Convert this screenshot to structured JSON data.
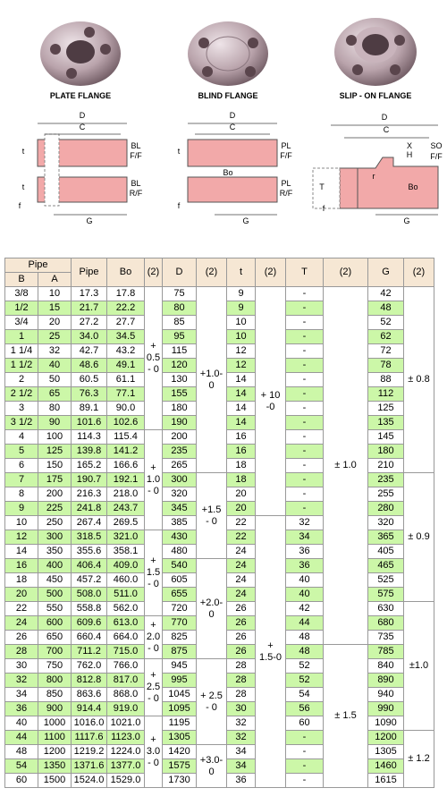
{
  "flanges": [
    "PLATE FLANGE",
    "BLIND FLANGE",
    "SLIP - ON FLANGE"
  ],
  "diagrams": [
    {
      "labels": [
        "D",
        "C",
        "BL",
        "F/F",
        "BL",
        "R/F",
        "t",
        "t",
        "f",
        "G"
      ]
    },
    {
      "labels": [
        "D",
        "C",
        "PL",
        "F/F",
        "PL",
        "R/F",
        "t",
        "Bo",
        "f",
        "G"
      ]
    },
    {
      "labels": [
        "D",
        "C",
        "X",
        "H",
        "SO",
        "F/F",
        "T",
        "r",
        "Bo",
        "f",
        "G"
      ]
    }
  ],
  "table": {
    "header": [
      "Pipe",
      "Pipe",
      "Bo",
      "(2)",
      "D",
      "(2)",
      "t",
      "(2)",
      "T",
      "(2)",
      "G",
      "(2)"
    ],
    "subheader": [
      "B",
      "A"
    ],
    "rows": [
      [
        "3/8",
        "10",
        "17.3",
        "17.8",
        "75",
        "9",
        "-",
        "42"
      ],
      [
        "1/2",
        "15",
        "21.7",
        "22.2",
        "80",
        "9",
        "-",
        "48"
      ],
      [
        "3/4",
        "20",
        "27.2",
        "27.7",
        "85",
        "10",
        "-",
        "52"
      ],
      [
        "1",
        "25",
        "34.0",
        "34.5",
        "95",
        "10",
        "-",
        "62"
      ],
      [
        "1 1/4",
        "32",
        "42.7",
        "43.2",
        "115",
        "12",
        "-",
        "72"
      ],
      [
        "1 1/2",
        "40",
        "48.6",
        "49.1",
        "120",
        "12",
        "-",
        "78"
      ],
      [
        "2",
        "50",
        "60.5",
        "61.1",
        "130",
        "14",
        "-",
        "88"
      ],
      [
        "2 1/2",
        "65",
        "76.3",
        "77.1",
        "155",
        "14",
        "-",
        "112"
      ],
      [
        "3",
        "80",
        "89.1",
        "90.0",
        "180",
        "14",
        "-",
        "125"
      ],
      [
        "3 1/2",
        "90",
        "101.6",
        "102.6",
        "190",
        "14",
        "-",
        "135"
      ],
      [
        "4",
        "100",
        "114.3",
        "115.4",
        "200",
        "16",
        "-",
        "145"
      ],
      [
        "5",
        "125",
        "139.8",
        "141.2",
        "235",
        "16",
        "-",
        "180"
      ],
      [
        "6",
        "150",
        "165.2",
        "166.6",
        "265",
        "18",
        "-",
        "210"
      ],
      [
        "7",
        "175",
        "190.7",
        "192.1",
        "300",
        "18",
        "-",
        "235"
      ],
      [
        "8",
        "200",
        "216.3",
        "218.0",
        "320",
        "20",
        "-",
        "255"
      ],
      [
        "9",
        "225",
        "241.8",
        "243.7",
        "345",
        "20",
        "-",
        "280"
      ],
      [
        "10",
        "250",
        "267.4",
        "269.5",
        "385",
        "22",
        "32",
        "320"
      ],
      [
        "12",
        "300",
        "318.5",
        "321.0",
        "430",
        "22",
        "34",
        "365"
      ],
      [
        "14",
        "350",
        "355.6",
        "358.1",
        "480",
        "24",
        "36",
        "405"
      ],
      [
        "16",
        "400",
        "406.4",
        "409.0",
        "540",
        "24",
        "36",
        "465"
      ],
      [
        "18",
        "450",
        "457.2",
        "460.0",
        "605",
        "24",
        "40",
        "525"
      ],
      [
        "20",
        "500",
        "508.0",
        "511.0",
        "655",
        "24",
        "40",
        "575"
      ],
      [
        "22",
        "550",
        "558.8",
        "562.0",
        "720",
        "26",
        "42",
        "630"
      ],
      [
        "24",
        "600",
        "609.6",
        "613.0",
        "770",
        "26",
        "44",
        "680"
      ],
      [
        "26",
        "650",
        "660.4",
        "664.0",
        "825",
        "26",
        "48",
        "735"
      ],
      [
        "28",
        "700",
        "711.2",
        "715.0",
        "875",
        "26",
        "48",
        "785"
      ],
      [
        "30",
        "750",
        "762.0",
        "766.0",
        "945",
        "28",
        "52",
        "840"
      ],
      [
        "32",
        "800",
        "812.8",
        "817.0",
        "995",
        "28",
        "52",
        "890"
      ],
      [
        "34",
        "850",
        "863.6",
        "868.0",
        "1045",
        "28",
        "54",
        "940"
      ],
      [
        "36",
        "900",
        "914.4",
        "919.0",
        "1095",
        "30",
        "56",
        "990"
      ],
      [
        "40",
        "1000",
        "1016.0",
        "1021.0",
        "1195",
        "32",
        "60",
        "1090"
      ],
      [
        "44",
        "1100",
        "1117.6",
        "1123.0",
        "1305",
        "32",
        "-",
        "1200"
      ],
      [
        "48",
        "1200",
        "1219.2",
        "1224.0",
        "1420",
        "34",
        "-",
        "1305"
      ],
      [
        "54",
        "1350",
        "1371.6",
        "1377.0",
        "1575",
        "34",
        "-",
        "1460"
      ],
      [
        "60",
        "1500",
        "1524.0",
        "1529.0",
        "1730",
        "36",
        "-",
        "1615"
      ]
    ],
    "tolerances": [
      [
        "+\n0.5\n- 0",
        "+\n1.0\n- 0",
        "+\n1.5\n- 0",
        "+\n2.0\n- 0",
        "+\n2.5\n- 0",
        "+\n3.0\n- 0"
      ],
      [
        "+1.0-\n0",
        "+1.5\n- 0",
        "+2.0-\n0",
        "+ 2.5\n- 0",
        "+3.0-\n0"
      ],
      [
        "+ 10\n-0",
        "+\n1.5-0"
      ],
      [
        "± 1.0",
        "± 1.5"
      ],
      [
        "± 0.8",
        "± 0.9",
        "±1.0",
        "± 1.2"
      ]
    ]
  }
}
